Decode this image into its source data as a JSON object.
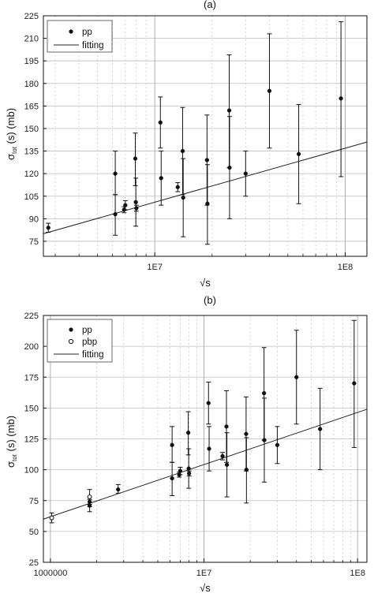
{
  "chart_data": [
    {
      "type": "scatter",
      "panel_label": "(a)",
      "xscale": "log",
      "xlim": [
        2600000,
        130000000
      ],
      "ylim": [
        65,
        225
      ],
      "yticks": [
        75,
        90,
        105,
        120,
        135,
        150,
        165,
        180,
        195,
        210,
        225
      ],
      "xticks": [
        {
          "value": 10000000,
          "label": "1E7"
        },
        {
          "value": 100000000,
          "label": "1E8"
        }
      ],
      "xlabel": "√s",
      "ylabel": "σtot (s) (mb)",
      "ylabel_main": "σ",
      "ylabel_sub": "tot",
      "ylabel_rest": " (s) (mb)",
      "grid": true,
      "legend_position": "top-left",
      "series": [
        {
          "name": "pp",
          "marker": "filled-circle",
          "points": [
            {
              "x": 2760000,
              "y": 84,
              "ylo": 81,
              "yhi": 87
            },
            {
              "x": 6200000,
              "y": 120,
              "ylo": 106,
              "yhi": 135
            },
            {
              "x": 6200000,
              "y": 93,
              "ylo": 79,
              "yhi": 106
            },
            {
              "x": 6900000,
              "y": 96,
              "ylo": 94,
              "yhi": 98
            },
            {
              "x": 7000000,
              "y": 99,
              "ylo": 96,
              "yhi": 102
            },
            {
              "x": 7900000,
              "y": 130,
              "ylo": 112,
              "yhi": 147
            },
            {
              "x": 7950000,
              "y": 101,
              "ylo": 85,
              "yhi": 117
            },
            {
              "x": 8000000,
              "y": 97,
              "ylo": 95,
              "yhi": 99
            },
            {
              "x": 10700000,
              "y": 154,
              "ylo": 137,
              "yhi": 171
            },
            {
              "x": 10800000,
              "y": 117,
              "ylo": 99,
              "yhi": 135
            },
            {
              "x": 13200000,
              "y": 111,
              "ylo": 108,
              "yhi": 114
            },
            {
              "x": 14000000,
              "y": 135,
              "ylo": 106,
              "yhi": 164
            },
            {
              "x": 14100000,
              "y": 104,
              "ylo": 78,
              "yhi": 130
            },
            {
              "x": 18800000,
              "y": 129,
              "ylo": 99,
              "yhi": 159
            },
            {
              "x": 18900000,
              "y": 100,
              "ylo": 73,
              "yhi": 126
            },
            {
              "x": 24600000,
              "y": 162,
              "ylo": 124,
              "yhi": 199
            },
            {
              "x": 24700000,
              "y": 124,
              "ylo": 90,
              "yhi": 158
            },
            {
              "x": 30000000,
              "y": 120,
              "ylo": 105,
              "yhi": 135
            },
            {
              "x": 40000000,
              "y": 175,
              "ylo": 137,
              "yhi": 213
            },
            {
              "x": 57000000,
              "y": 133,
              "ylo": 100,
              "yhi": 166
            },
            {
              "x": 95000000,
              "y": 170,
              "ylo": 118,
              "yhi": 221
            }
          ]
        },
        {
          "name": "fitting",
          "type": "line",
          "x": [
            2600000,
            130000000
          ],
          "y": [
            80,
            141
          ]
        }
      ]
    },
    {
      "type": "scatter",
      "panel_label": "(b)",
      "xscale": "log",
      "xlim": [
        900000,
        115000000
      ],
      "ylim": [
        25,
        225
      ],
      "yticks": [
        25,
        50,
        75,
        100,
        125,
        150,
        175,
        200,
        225
      ],
      "xticks": [
        {
          "value": 1000000,
          "label": "1000000"
        },
        {
          "value": 10000000,
          "label": "1E7"
        },
        {
          "value": 100000000,
          "label": "1E8"
        }
      ],
      "xlabel": "√s",
      "ylabel": "σtot (s) (mb)",
      "ylabel_main": "σ",
      "ylabel_sub": "tot",
      "ylabel_rest": " (s) (mb)",
      "grid": true,
      "legend_position": "top-left",
      "series": [
        {
          "name": "pp",
          "marker": "filled-circle",
          "points": [
            {
              "x": 1800000,
              "y": 71,
              "ylo": 66,
              "yhi": 76
            },
            {
              "x": 1800000,
              "y": 74,
              "ylo": 70,
              "yhi": 78
            },
            {
              "x": 2760000,
              "y": 84,
              "ylo": 81,
              "yhi": 88
            },
            {
              "x": 6200000,
              "y": 120,
              "ylo": 106,
              "yhi": 135
            },
            {
              "x": 6200000,
              "y": 93,
              "ylo": 79,
              "yhi": 106
            },
            {
              "x": 6900000,
              "y": 96,
              "ylo": 94,
              "yhi": 98
            },
            {
              "x": 7000000,
              "y": 99,
              "ylo": 96,
              "yhi": 102
            },
            {
              "x": 7900000,
              "y": 130,
              "ylo": 112,
              "yhi": 147
            },
            {
              "x": 7950000,
              "y": 101,
              "ylo": 85,
              "yhi": 117
            },
            {
              "x": 8000000,
              "y": 97,
              "ylo": 95,
              "yhi": 99
            },
            {
              "x": 10700000,
              "y": 154,
              "ylo": 137,
              "yhi": 171
            },
            {
              "x": 10800000,
              "y": 117,
              "ylo": 99,
              "yhi": 135
            },
            {
              "x": 13200000,
              "y": 111,
              "ylo": 108,
              "yhi": 114
            },
            {
              "x": 14000000,
              "y": 135,
              "ylo": 106,
              "yhi": 164
            },
            {
              "x": 14100000,
              "y": 104,
              "ylo": 78,
              "yhi": 130
            },
            {
              "x": 18800000,
              "y": 129,
              "ylo": 99,
              "yhi": 159
            },
            {
              "x": 18900000,
              "y": 100,
              "ylo": 73,
              "yhi": 126
            },
            {
              "x": 24600000,
              "y": 162,
              "ylo": 124,
              "yhi": 199
            },
            {
              "x": 24700000,
              "y": 124,
              "ylo": 90,
              "yhi": 158
            },
            {
              "x": 30000000,
              "y": 120,
              "ylo": 105,
              "yhi": 135
            },
            {
              "x": 40000000,
              "y": 175,
              "ylo": 137,
              "yhi": 213
            },
            {
              "x": 57000000,
              "y": 133,
              "ylo": 100,
              "yhi": 166
            },
            {
              "x": 95000000,
              "y": 170,
              "ylo": 118,
              "yhi": 221
            }
          ]
        },
        {
          "name": "pbp",
          "marker": "open-circle",
          "points": [
            {
              "x": 1020000,
              "y": 61,
              "ylo": 57,
              "yhi": 65
            },
            {
              "x": 1800000,
              "y": 78,
              "ylo": 72,
              "yhi": 84
            }
          ]
        },
        {
          "name": "fitting",
          "type": "line",
          "x": [
            900000,
            115000000
          ],
          "y": [
            60,
            149
          ]
        }
      ]
    }
  ]
}
